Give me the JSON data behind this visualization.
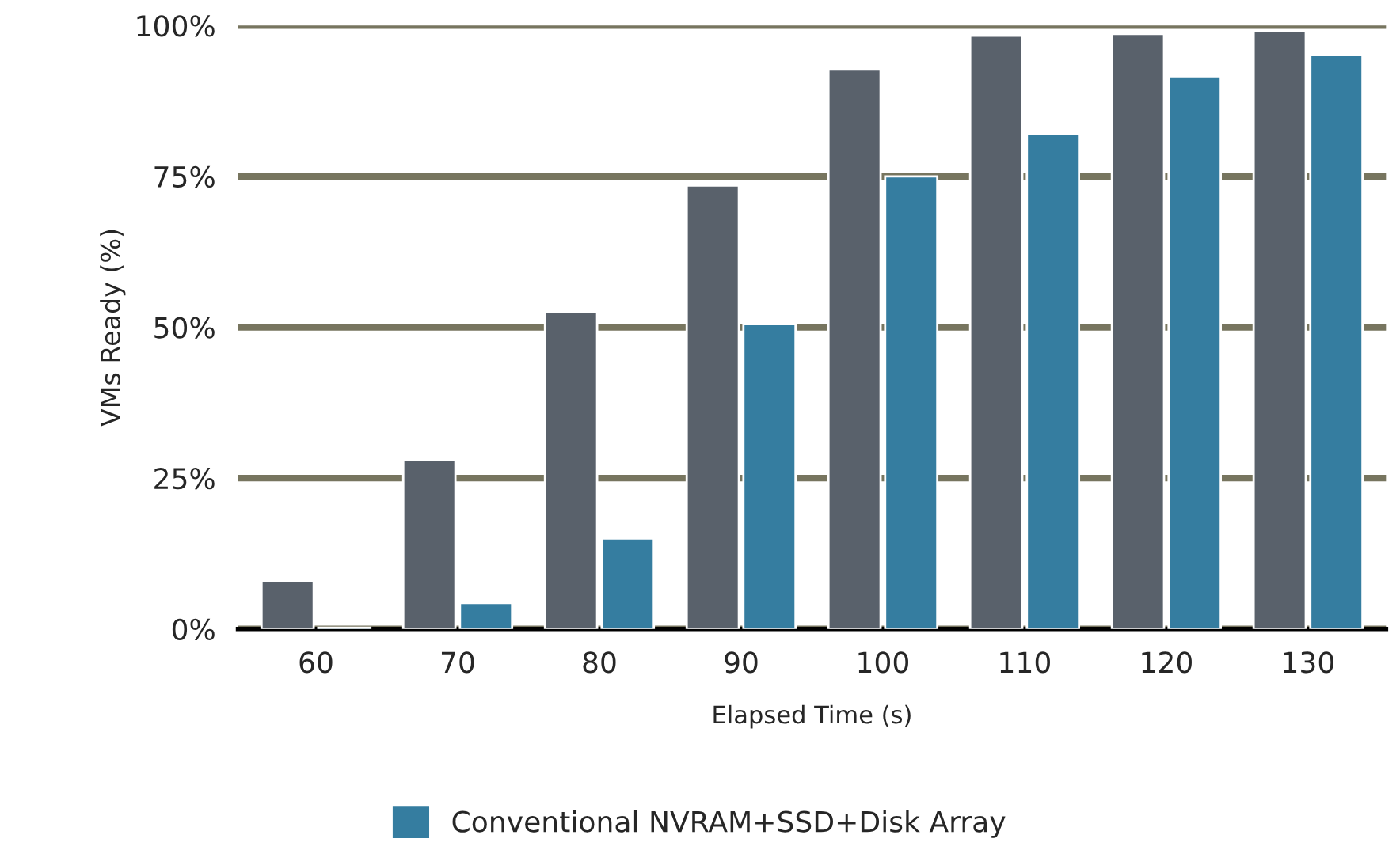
{
  "chart_data": {
    "type": "bar",
    "xlabel": "Elapsed Time (s)",
    "ylabel": "VMs Ready (%)",
    "categories": [
      "60",
      "70",
      "80",
      "90",
      "100",
      "110",
      "120",
      "130"
    ],
    "series": [
      {
        "color": "#59616b",
        "values": [
          8,
          28,
          52.5,
          73.5,
          92.7,
          98.3,
          98.6,
          99.1
        ]
      },
      {
        "name": "Conventional NVRAM+SSD+Disk Array",
        "color": "#357da0",
        "values": [
          0.2,
          4.3,
          15,
          50.5,
          75,
          82,
          91.6,
          95.1
        ]
      }
    ],
    "ylim": [
      0,
      100
    ],
    "yticks": [
      {
        "value": 0,
        "label": "0%"
      },
      {
        "value": 25,
        "label": "25%"
      },
      {
        "value": 50,
        "label": "50%"
      },
      {
        "value": 75,
        "label": "75%"
      },
      {
        "value": 100,
        "label": "100%"
      }
    ],
    "grid": "y",
    "legend": "bottom"
  }
}
